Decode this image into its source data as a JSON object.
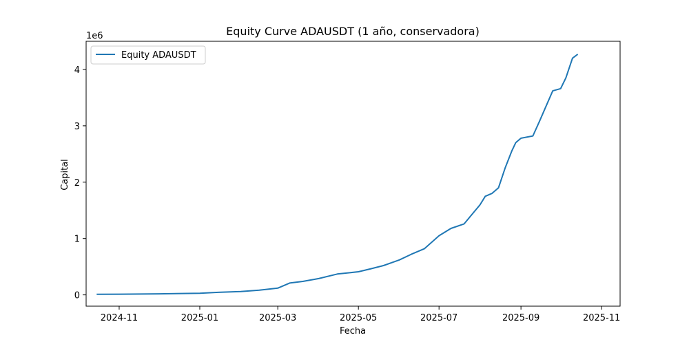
{
  "chart_data": {
    "type": "line",
    "title": "Equity Curve ADAUSDT (1 año, conservadora)",
    "xlabel": "Fecha",
    "ylabel": "Capital",
    "y_offset_label": "1e6",
    "x_ticks": [
      "2024-11",
      "2025-01",
      "2025-03",
      "2025-05",
      "2025-07",
      "2025-09",
      "2025-11"
    ],
    "y_ticks": [
      "0",
      "1",
      "2",
      "3",
      "4"
    ],
    "xlim": [
      "2024-10-07",
      "2025-11-15"
    ],
    "ylim": [
      -200000,
      4500000
    ],
    "grid": false,
    "legend": "upper-left",
    "colors": {
      "line": "#1f77b4"
    },
    "series": [
      {
        "name": "Equity ADAUSDT",
        "x": [
          "2024-10-15",
          "2024-11-01",
          "2024-12-01",
          "2025-01-01",
          "2025-01-15",
          "2025-02-01",
          "2025-02-15",
          "2025-03-01",
          "2025-03-10",
          "2025-03-20",
          "2025-04-01",
          "2025-04-15",
          "2025-05-01",
          "2025-05-10",
          "2025-05-20",
          "2025-06-01",
          "2025-06-10",
          "2025-06-20",
          "2025-07-01",
          "2025-07-10",
          "2025-07-20",
          "2025-08-01",
          "2025-08-05",
          "2025-08-10",
          "2025-08-15",
          "2025-08-20",
          "2025-08-25",
          "2025-08-28",
          "2025-09-01",
          "2025-09-10",
          "2025-09-15",
          "2025-09-20",
          "2025-09-25",
          "2025-10-01",
          "2025-10-05",
          "2025-10-10",
          "2025-10-14"
        ],
        "values": [
          10000,
          12000,
          18000,
          30000,
          45000,
          60000,
          85000,
          120000,
          210000,
          240000,
          290000,
          370000,
          410000,
          460000,
          520000,
          620000,
          720000,
          820000,
          1050000,
          1180000,
          1260000,
          1600000,
          1750000,
          1800000,
          1900000,
          2250000,
          2550000,
          2700000,
          2780000,
          2820000,
          3080000,
          3350000,
          3620000,
          3660000,
          3850000,
          4200000,
          4270000
        ]
      }
    ]
  }
}
